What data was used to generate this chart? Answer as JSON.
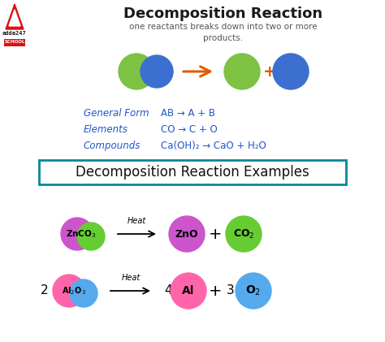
{
  "title": "Decomposition Reaction",
  "subtitle": "one reactants breaks down into two or more\nproducts.",
  "bg_color": "#ffffff",
  "title_color": "#1a1a1a",
  "blue_label_color": "#2255cc",
  "arrow_color": "#e05a00",
  "box_border_color": "#008899",
  "box_text": "Decomposition Reaction Examples",
  "general_form_label": "General Form",
  "elements_label": "Elements",
  "compounds_label": "Compounds",
  "green_color": "#7dc243",
  "blue_sphere_color": "#3c6fcf",
  "purple_color": "#cc55cc",
  "pink_color": "#ff66aa",
  "light_green_color": "#66cc33",
  "sky_blue_color": "#55aaee",
  "adda_red": "#dd1111"
}
